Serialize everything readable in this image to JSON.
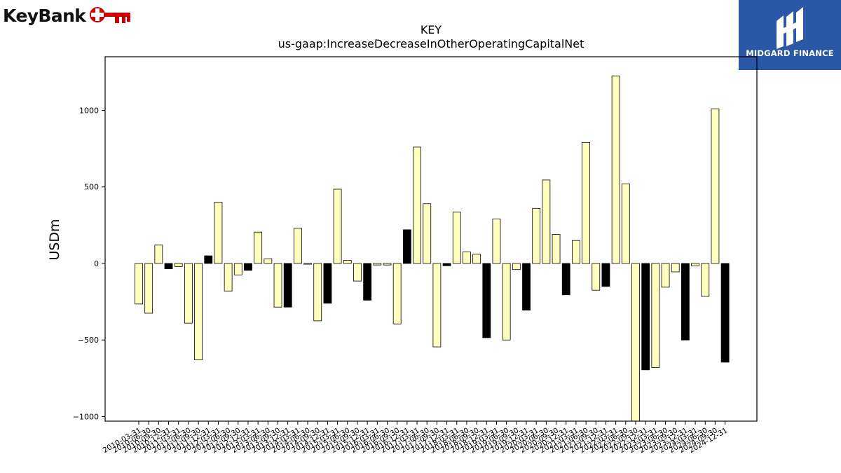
{
  "logos": {
    "left_brand": "KeyBank",
    "right_brand": "MIDGARD FINANCE"
  },
  "colors": {
    "bar_positive": "#ffffc0",
    "bar_highlight": "#000000",
    "bar_edge": "#000000",
    "keybank_red": "#cc0000",
    "midgard_blue": "#2a57a6"
  },
  "chart_data": {
    "type": "bar",
    "title": "KEY",
    "subtitle": "us-gaap:IncreaseDecreaseInOtherOperatingCapitalNet",
    "xlabel": "",
    "ylabel": "USDm",
    "ylim": [
      -1030,
      1350
    ],
    "yticks": [
      -1000,
      -500,
      0,
      500,
      1000
    ],
    "grid": false,
    "legend": "none",
    "categories": [
      "2010-03-31",
      "2010-06-30",
      "2010-09-30",
      "2010-12-31",
      "2011-03-31",
      "2011-06-30",
      "2011-09-30",
      "2011-12-31",
      "2012-03-31",
      "2012-06-30",
      "2012-09-30",
      "2012-12-31",
      "2013-03-31",
      "2013-06-30",
      "2013-09-30",
      "2013-12-31",
      "2014-03-31",
      "2014-06-30",
      "2014-09-30",
      "2014-12-31",
      "2015-03-31",
      "2015-06-30",
      "2015-09-30",
      "2015-12-31",
      "2016-03-31",
      "2016-06-30",
      "2016-09-30",
      "2016-12-31",
      "2017-03-31",
      "2017-06-30",
      "2017-09-30",
      "2017-12-31",
      "2018-03-31",
      "2018-06-30",
      "2018-09-30",
      "2018-12-31",
      "2019-03-31",
      "2019-06-30",
      "2019-09-30",
      "2019-12-31",
      "2020-03-31",
      "2020-06-30",
      "2020-09-30",
      "2020-12-31",
      "2021-03-31",
      "2021-06-30",
      "2021-09-30",
      "2021-12-31",
      "2022-03-31",
      "2022-06-30",
      "2022-09-30",
      "2022-12-31",
      "2023-03-31",
      "2023-06-30",
      "2023-09-30",
      "2023-12-31",
      "2024-03-31",
      "2024-06-30",
      "2024-09-30",
      "2024-12-31"
    ],
    "values": [
      -265,
      -325,
      120,
      -35,
      -20,
      -390,
      -630,
      50,
      400,
      -180,
      -75,
      -45,
      205,
      30,
      -285,
      -285,
      230,
      -5,
      -375,
      -260,
      485,
      20,
      -115,
      -240,
      -10,
      -10,
      -395,
      220,
      760,
      390,
      -545,
      -15,
      335,
      75,
      60,
      -485,
      290,
      -500,
      -40,
      -305,
      360,
      545,
      190,
      -205,
      150,
      790,
      -175,
      -150,
      1225,
      520,
      -1030,
      -695,
      -680,
      -155,
      -55,
      -500,
      -15,
      -215,
      1010,
      -645
    ],
    "highlight": [
      false,
      false,
      false,
      true,
      false,
      false,
      false,
      true,
      false,
      false,
      false,
      true,
      false,
      false,
      false,
      true,
      false,
      false,
      false,
      true,
      false,
      false,
      false,
      true,
      false,
      false,
      false,
      true,
      false,
      false,
      false,
      true,
      false,
      false,
      false,
      true,
      false,
      false,
      false,
      true,
      false,
      false,
      false,
      true,
      false,
      false,
      false,
      true,
      false,
      false,
      false,
      true,
      false,
      false,
      false,
      true,
      false,
      false,
      false,
      true
    ]
  }
}
